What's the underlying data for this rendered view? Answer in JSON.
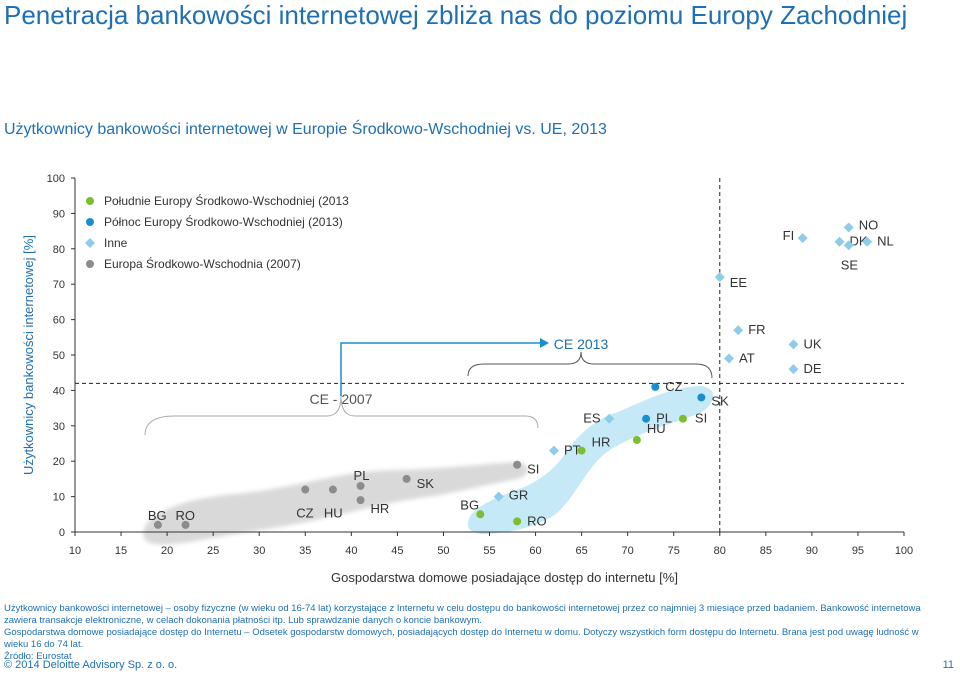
{
  "slide": {
    "title": "Penetracja bankowości internetowej zbliża nas do poziomu Europy Zachodniej",
    "subtitle": "Użytkownicy bankowości internetowej w Europie Środkowo-Wschodniej vs. UE, 2013",
    "footnote1": "Użytkownicy bankowości internetowej – osoby fizyczne (w wieku od 16-74 lat) korzystające z Internetu w celu dostępu do bankowości internetowej przez co najmniej 3 miesiące przed badaniem. Bankowość internetowa zawiera transakcje elektroniczne, w celach dokonania płatności itp. Lub sprawdzanie danych o koncie bankowym.",
    "footnote2": "Gospodarstwa domowe posiadające dostęp do Internetu – Odsetek gospodarstw domowych, posiadających dostęp do Internetu w domu. Dotyczy wszystkich form dostępu do Internetu. Brana jest pod uwagę ludność w wieku 16 do 74 lat.",
    "source": "Źródło: Eurostat",
    "copyright": "© 2014 Deloitte Advisory Sp. z o. o.",
    "page": "11"
  },
  "chart_data": {
    "type": "scatter",
    "xlabel": "Gospodarstwa domowe posiadające dostęp do internetu [%]",
    "ylabel": "Użytkownicy bankowości internetowej [%]",
    "xlim": [
      10,
      100
    ],
    "ylim": [
      0,
      100
    ],
    "xticks": [
      "10",
      "15",
      "20",
      "25",
      "30",
      "35",
      "40",
      "45",
      "50",
      "55",
      "60",
      "65",
      "70",
      "75",
      "80",
      "85",
      "90",
      "95",
      "100"
    ],
    "yticks": [
      "0",
      "10",
      "20",
      "30",
      "40",
      "50",
      "60",
      "70",
      "80",
      "90",
      "100"
    ],
    "reference_lines": {
      "x": 80,
      "y": 42
    },
    "annotations": {
      "ce2007": "CE - 2007",
      "ce2013": "CE 2013"
    },
    "colors": {
      "south": "#7cbf2e",
      "north": "#1a8fd0",
      "other": "#8ecde8",
      "ce2007": "#8c8c8c",
      "band2007": "#d9d9d9",
      "band2013": "#c6e9f8"
    },
    "legend_position": "top-left",
    "series": [
      {
        "name": "Południe Europy Środkowo-Wschodniej (2013",
        "marker": "circle",
        "points": [
          {
            "label": "BG",
            "x": 54,
            "y": 5
          },
          {
            "label": "RO",
            "x": 58,
            "y": 3
          },
          {
            "label": "HR",
            "x": 65,
            "y": 23
          },
          {
            "label": "HU",
            "x": 71,
            "y": 26
          },
          {
            "label": "SI",
            "x": 76,
            "y": 32
          }
        ]
      },
      {
        "name": "Północ Europy Środkowo-Wschodniej (2013)",
        "marker": "circle",
        "points": [
          {
            "label": "CZ",
            "x": 73,
            "y": 41
          },
          {
            "label": "PL",
            "x": 72,
            "y": 32
          },
          {
            "label": "SK",
            "x": 78,
            "y": 38
          }
        ]
      },
      {
        "name": "Inne",
        "marker": "diamond",
        "points": [
          {
            "label": "GR",
            "x": 56,
            "y": 10
          },
          {
            "label": "PT",
            "x": 62,
            "y": 23
          },
          {
            "label": "ES",
            "x": 68,
            "y": 32
          },
          {
            "label": "EE",
            "x": 80,
            "y": 72
          },
          {
            "label": "FR",
            "x": 82,
            "y": 57
          },
          {
            "label": "AT",
            "x": 81,
            "y": 49
          },
          {
            "label": "FI",
            "x": 89,
            "y": 83
          },
          {
            "label": "DK",
            "x": 93,
            "y": 82
          },
          {
            "label": "SE",
            "x": 94,
            "y": 81
          },
          {
            "label": "NO",
            "x": 94,
            "y": 86
          },
          {
            "label": "NL",
            "x": 96,
            "y": 82
          },
          {
            "label": "UK",
            "x": 88,
            "y": 53
          },
          {
            "label": "DE",
            "x": 88,
            "y": 46
          }
        ]
      },
      {
        "name": "Europa Środkowo-Wschodnia (2007)",
        "marker": "circle",
        "points": [
          {
            "label": "BG",
            "x": 19,
            "y": 2
          },
          {
            "label": "RO",
            "x": 22,
            "y": 2
          },
          {
            "label": "CZ",
            "x": 35,
            "y": 12
          },
          {
            "label": "HU",
            "x": 38,
            "y": 12
          },
          {
            "label": "PL",
            "x": 41,
            "y": 13
          },
          {
            "label": "HR",
            "x": 41,
            "y": 9
          },
          {
            "label": "SK",
            "x": 46,
            "y": 15
          },
          {
            "label": "SI",
            "x": 58,
            "y": 19
          }
        ]
      }
    ]
  }
}
